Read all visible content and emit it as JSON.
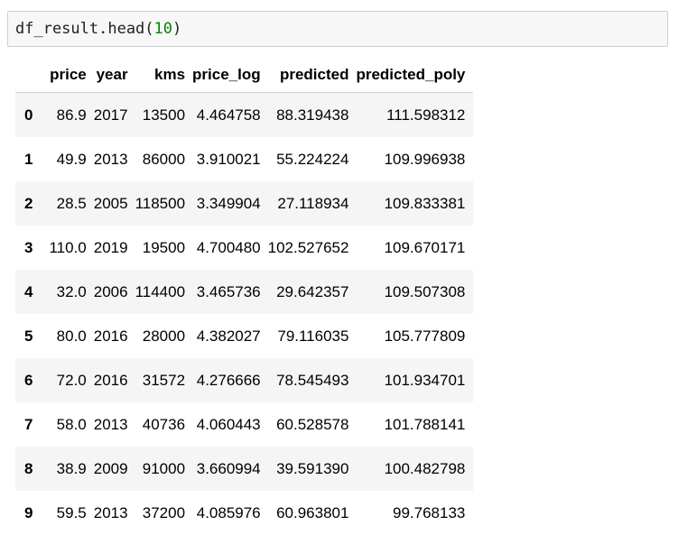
{
  "cell": {
    "code_prefix": "df_result.head(",
    "code_number": "10",
    "code_suffix": ")"
  },
  "table": {
    "index_header": "",
    "columns": [
      "price",
      "year",
      "kms",
      "price_log",
      "predicted",
      "predicted_poly"
    ],
    "rows": [
      {
        "index": "0",
        "cells": [
          "86.9",
          "2017",
          "13500",
          "4.464758",
          "88.319438",
          "111.598312"
        ]
      },
      {
        "index": "1",
        "cells": [
          "49.9",
          "2013",
          "86000",
          "3.910021",
          "55.224224",
          "109.996938"
        ]
      },
      {
        "index": "2",
        "cells": [
          "28.5",
          "2005",
          "118500",
          "3.349904",
          "27.118934",
          "109.833381"
        ]
      },
      {
        "index": "3",
        "cells": [
          "110.0",
          "2019",
          "19500",
          "4.700480",
          "102.527652",
          "109.670171"
        ]
      },
      {
        "index": "4",
        "cells": [
          "32.0",
          "2006",
          "114400",
          "3.465736",
          "29.642357",
          "109.507308"
        ]
      },
      {
        "index": "5",
        "cells": [
          "80.0",
          "2016",
          "28000",
          "4.382027",
          "79.116035",
          "105.777809"
        ]
      },
      {
        "index": "6",
        "cells": [
          "72.0",
          "2016",
          "31572",
          "4.276666",
          "78.545493",
          "101.934701"
        ]
      },
      {
        "index": "7",
        "cells": [
          "58.0",
          "2013",
          "40736",
          "4.060443",
          "60.528578",
          "101.788141"
        ]
      },
      {
        "index": "8",
        "cells": [
          "38.9",
          "2009",
          "91000",
          "3.660994",
          "39.591390",
          "100.482798"
        ]
      },
      {
        "index": "9",
        "cells": [
          "59.5",
          "2013",
          "37200",
          "4.085976",
          "60.963801",
          "99.768133"
        ]
      }
    ]
  }
}
